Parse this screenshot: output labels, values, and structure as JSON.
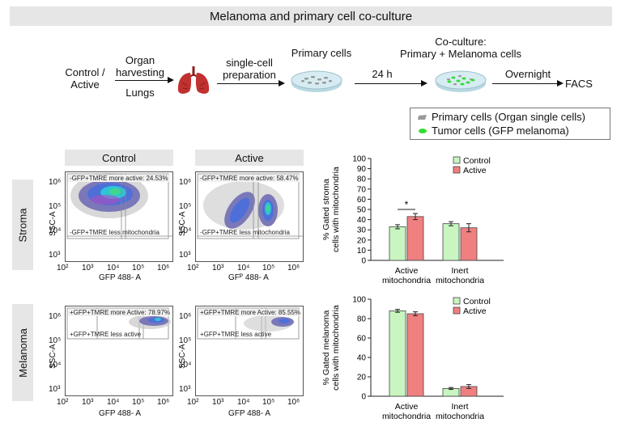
{
  "title": "Melanoma and primary cell co-culture",
  "workflow": {
    "start_label_1": "Control /",
    "start_label_2": "Active",
    "step1_top_1": "Organ",
    "step1_top_2": "harvesting",
    "step1_bottom": "Lungs",
    "step2_top_1": "single-cell",
    "step2_top_2": "preparation",
    "primary_cells": "Primary cells",
    "time_label": "24 h",
    "coculture_1": "Co-culture:",
    "coculture_2": "Primary + Melanoma cells",
    "overnight": "Overnight",
    "facs": "FACS",
    "colors": {
      "primary_cells": "#9a9a9a",
      "tumor_cells": "#33dd33",
      "lung": "#c0312f",
      "dish": "#cfe6ee"
    }
  },
  "legend": {
    "primary": "Primary cells (Organ single cells)",
    "tumor": "Tumor cells (GFP melanoma)"
  },
  "flow": {
    "col_control": "Control",
    "col_active": "Active",
    "row_stroma": "Stroma",
    "row_melanoma": "Melanoma",
    "ylabel": "SSC-A",
    "xlabel": "GFP 488- A",
    "xlabel_active_stroma": "GFᴾ 488- A",
    "xticks": [
      "10²",
      "10³",
      "10⁴",
      "10⁵",
      "10⁶"
    ],
    "yticks": [
      "10⁶",
      "10⁵",
      "10⁴",
      "10³"
    ],
    "stroma_control_upper": "-GFP+TMRE more active: 24.53%",
    "stroma_control_lower": "-GFP+TMRE less mitochondria",
    "stroma_active_upper": "-GFP+TMRE more active: 58.47%",
    "stroma_active_lower": "-GFP+TMRE less mitochondria",
    "melanoma_control_upper": "+GFP+TMRE more Active: 78.97%",
    "melanoma_control_lower": "+GFP+TMRE less active",
    "melanoma_active_upper": "+GFP+TMRE more Active: 85.55%",
    "melanoma_active_lower": "+GFP+TMRE less active"
  },
  "chart_data": [
    {
      "type": "bar",
      "ylabel": "% Gated stroma cells with mitochondria",
      "categories": [
        "Active mitochondria",
        "Inert mitochondria"
      ],
      "category_lines": [
        [
          "Active",
          "mitochondria"
        ],
        [
          "Inert",
          "mitochondria"
        ]
      ],
      "series": [
        {
          "name": "Control",
          "values": [
            33,
            36
          ],
          "errors": [
            2,
            2
          ],
          "color": "#c8f5c0"
        },
        {
          "name": "Active",
          "values": [
            43,
            32
          ],
          "errors": [
            3,
            4
          ],
          "color": "#f08080"
        }
      ],
      "ylim": [
        0,
        100
      ],
      "yticks": [
        0,
        10,
        20,
        30,
        40,
        50,
        60,
        70,
        80,
        90,
        100
      ],
      "significance": "*",
      "legend_position": "top-right"
    },
    {
      "type": "bar",
      "ylabel": "% Gated melanoma cells with mitochondria",
      "categories": [
        "Active mitochondria",
        "Inert mitochondria"
      ],
      "category_lines": [
        [
          "Active",
          "mitochondria"
        ],
        [
          "Inert",
          "mitochondria"
        ]
      ],
      "series": [
        {
          "name": "Control",
          "values": [
            88,
            8
          ],
          "errors": [
            1.5,
            1
          ],
          "color": "#c8f5c0"
        },
        {
          "name": "Active",
          "values": [
            85,
            10
          ],
          "errors": [
            2,
            2
          ],
          "color": "#f08080"
        }
      ],
      "ylim": [
        0,
        100
      ],
      "yticks": [
        0,
        20,
        40,
        60,
        80,
        100
      ],
      "legend_position": "top-right"
    }
  ]
}
